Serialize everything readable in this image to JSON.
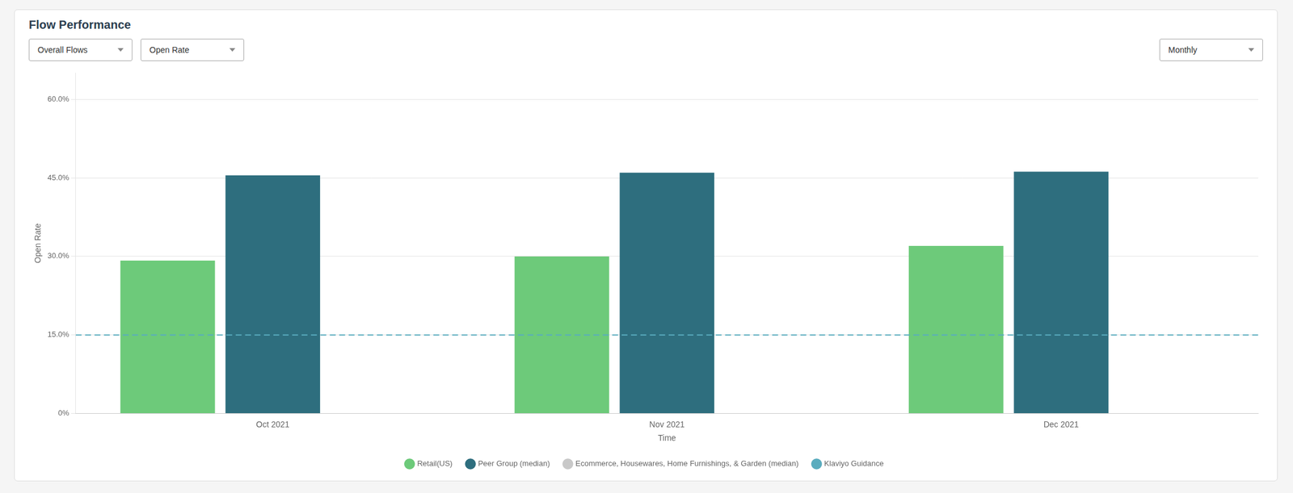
{
  "chart_data": {
    "type": "bar",
    "title": "Flow Performance",
    "dropdowns": [
      "Overall Flows",
      "Open Rate",
      "Monthly"
    ],
    "x_label": "Time",
    "y_label": "Open Rate",
    "categories": [
      "Oct 2021",
      "Nov 2021",
      "Dec 2021"
    ],
    "series": [
      {
        "name": "Retail(US)",
        "color": "#6dca7a",
        "values": [
          0.292,
          0.3,
          0.32
        ]
      },
      {
        "name": "Peer Group (median)",
        "color": "#2e6e7e",
        "values": [
          0.455,
          0.46,
          0.462
        ]
      },
      {
        "name": "Ecommerce, Housewares, Home Furnishings, & Garden (median)",
        "color": "#c8c8c8",
        "values": [
          null,
          null,
          null
        ]
      }
    ],
    "hlines": [
      {
        "name": "Klaviyo Guidance",
        "value": 0.15,
        "color": "#5aacbe",
        "line_style": "dashed"
      }
    ],
    "ylim": [
      0,
      0.65
    ],
    "yticks": [
      {
        "value": 0.0,
        "label": "0%"
      },
      {
        "value": 0.15,
        "label": "15.0%"
      },
      {
        "value": 0.3,
        "label": "30.0%"
      },
      {
        "value": 0.45,
        "label": "45.0%"
      },
      {
        "value": 0.6,
        "label": "60.0%"
      }
    ],
    "grid": true,
    "legend": "bottom"
  }
}
